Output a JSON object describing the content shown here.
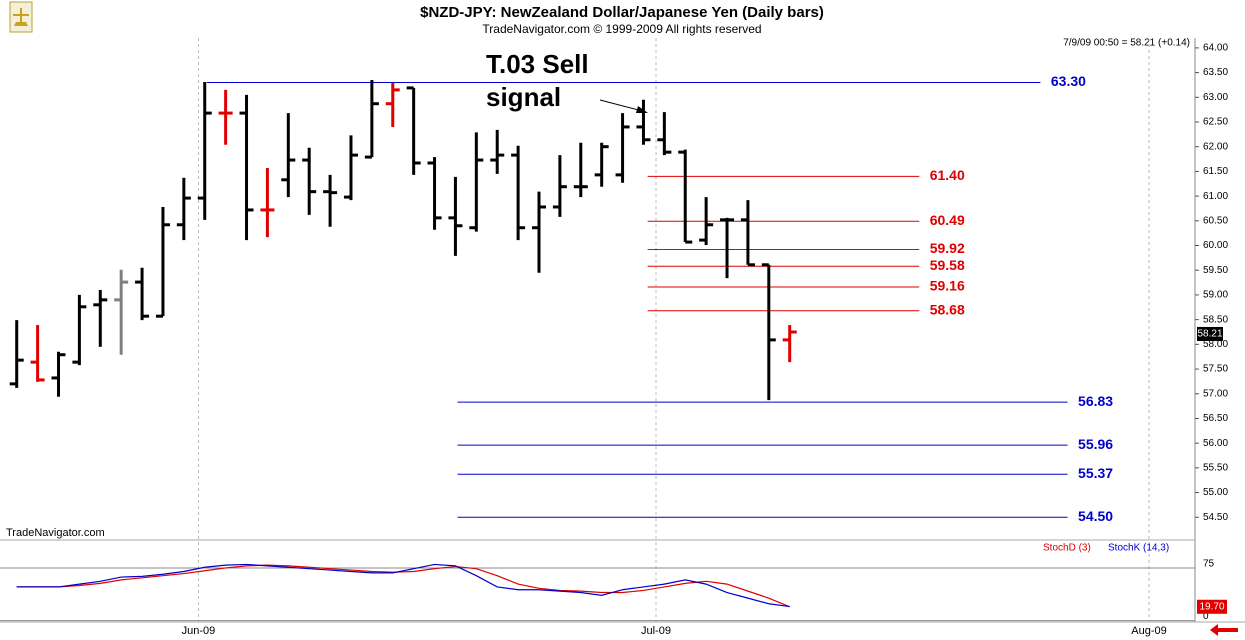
{
  "chart_data": [
    {
      "type": "ohlc",
      "title": "$NZD-JPY:  NewZealand Dollar/Japanese Yen  (Daily bars)",
      "subtitle": "TradeNavigator.com © 1999-2009 All rights reserved",
      "quote": "7/9/09 00:50 = 58.21 (+0.14)",
      "source": "TradeNavigator.com",
      "annotation": [
        "T.03 Sell",
        "signal"
      ],
      "x": [
        0,
        1,
        2,
        3,
        4,
        5,
        6,
        7,
        8,
        9,
        10,
        11,
        12,
        13,
        14,
        15,
        16,
        17,
        18,
        19,
        20,
        21,
        22,
        23,
        24,
        25,
        26,
        27,
        28,
        29,
        30,
        31,
        32,
        33,
        34,
        35,
        36,
        37
      ],
      "open": [
        57.2,
        57.64,
        57.32,
        57.64,
        58.8,
        58.9,
        59.26,
        58.57,
        60.42,
        60.96,
        62.68,
        62.68,
        60.72,
        61.33,
        61.73,
        61.09,
        60.98,
        61.79,
        62.87,
        63.19,
        61.67,
        60.56,
        60.36,
        61.73,
        61.83,
        60.36,
        60.78,
        61.19,
        61.43,
        61.43,
        62.4,
        62.14,
        61.89,
        60.11,
        60.52,
        60.52,
        59.61,
        58.09
      ],
      "high": [
        58.49,
        58.39,
        57.85,
        59.0,
        59.1,
        59.51,
        59.55,
        60.78,
        61.37,
        63.31,
        63.15,
        63.05,
        61.57,
        62.68,
        61.98,
        61.43,
        62.23,
        63.35,
        63.29,
        63.19,
        61.79,
        61.39,
        62.29,
        62.34,
        62.02,
        61.09,
        61.83,
        62.08,
        62.08,
        62.68,
        62.95,
        62.7,
        61.94,
        60.98,
        60.56,
        60.92,
        59.61,
        58.39
      ],
      "low": [
        57.12,
        57.24,
        56.94,
        57.58,
        57.95,
        57.79,
        58.49,
        58.57,
        60.11,
        60.52,
        62.04,
        60.11,
        60.17,
        60.98,
        60.62,
        60.38,
        60.92,
        61.79,
        62.4,
        61.43,
        60.32,
        59.79,
        60.28,
        61.45,
        60.11,
        59.45,
        60.58,
        60.98,
        61.19,
        61.27,
        62.04,
        61.83,
        60.07,
        60.01,
        59.34,
        59.61,
        56.87,
        57.64
      ],
      "close": [
        57.68,
        57.28,
        57.79,
        58.76,
        58.9,
        59.26,
        58.57,
        60.42,
        60.96,
        62.68,
        62.68,
        60.72,
        60.72,
        61.73,
        61.09,
        61.07,
        61.83,
        62.87,
        63.15,
        61.67,
        60.56,
        60.4,
        61.73,
        61.83,
        60.36,
        60.78,
        61.19,
        61.19,
        62.0,
        62.4,
        62.14,
        61.89,
        60.07,
        60.42,
        60.52,
        59.61,
        58.09,
        58.25
      ],
      "colors": [
        "#000000",
        "#e00000",
        "#000000",
        "#000000",
        "#000000",
        "#808080",
        "#000000",
        "#000000",
        "#000000",
        "#000000",
        "#e00000",
        "#000000",
        "#e00000",
        "#000000",
        "#000000",
        "#000000",
        "#000000",
        "#000000",
        "#e00000",
        "#000000",
        "#000000",
        "#000000",
        "#000000",
        "#000000",
        "#000000",
        "#000000",
        "#000000",
        "#000000",
        "#000000",
        "#000000",
        "#000000",
        "#000000",
        "#000000",
        "#000000",
        "#000000",
        "#000000",
        "#000000",
        "#e00000"
      ],
      "xlim": [
        -0.8,
        56.4
      ],
      "xticks": [
        {
          "value": 8.7,
          "label": "Jun-09"
        },
        {
          "value": 30.6,
          "label": "Jul-09"
        },
        {
          "value": 54.2,
          "label": "Aug-09"
        }
      ],
      "ylim": [
        54.04,
        64.2
      ],
      "yticks": [
        {
          "value": 54.5,
          "label": "54.50"
        },
        {
          "value": 55,
          "label": "55.00"
        },
        {
          "value": 55.5,
          "label": "55.50"
        },
        {
          "value": 56,
          "label": "56.00"
        },
        {
          "value": 56.5,
          "label": "56.50"
        },
        {
          "value": 57,
          "label": "57.00"
        },
        {
          "value": 57.5,
          "label": "57.50"
        },
        {
          "value": 58,
          "label": "58.00"
        },
        {
          "value": 58.5,
          "label": "58.50"
        },
        {
          "value": 59,
          "label": "59.00"
        },
        {
          "value": 59.5,
          "label": "59.50"
        },
        {
          "value": 60,
          "label": "60.00"
        },
        {
          "value": 60.5,
          "label": "60.50"
        },
        {
          "value": 61,
          "label": "61.00"
        },
        {
          "value": 61.5,
          "label": "61.50"
        },
        {
          "value": 62,
          "label": "62.00"
        },
        {
          "value": 62.5,
          "label": "62.50"
        },
        {
          "value": 63,
          "label": "63.00"
        },
        {
          "value": 63.5,
          "label": "63.50"
        },
        {
          "value": 64,
          "label": "64.00"
        }
      ],
      "levels": [
        {
          "value": 63.3,
          "label": "63.30",
          "color": "#0000cc",
          "from": 9.1,
          "to": 49
        },
        {
          "value": 61.4,
          "label": "61.40",
          "color": "#e00000",
          "from": 30.2,
          "to": 43.2
        },
        {
          "value": 60.49,
          "label": "60.49",
          "color": "#e00000",
          "from": 30.2,
          "to": 43.2
        },
        {
          "value": 59.92,
          "label": "59.92",
          "color": "#e00000",
          "from": 30.2,
          "to": 43.2
        },
        {
          "value": 59.58,
          "label": "59.58",
          "color": "#e00000",
          "from": 30.2,
          "to": 43.2
        },
        {
          "value": 59.16,
          "label": "59.16",
          "color": "#e00000",
          "from": 30.2,
          "to": 43.2
        },
        {
          "value": 58.68,
          "label": "58.68",
          "color": "#e00000",
          "from": 30.2,
          "to": 43.2
        },
        {
          "value": 56.83,
          "label": "56.83",
          "color": "#0000cc",
          "from": 21.1,
          "to": 50.3
        },
        {
          "value": 55.96,
          "label": "55.96",
          "color": "#0000cc",
          "from": 21.1,
          "to": 50.3
        },
        {
          "value": 55.37,
          "label": "55.37",
          "color": "#0000cc",
          "from": 21.1,
          "to": 50.3
        },
        {
          "value": 54.5,
          "label": "54.50",
          "color": "#0000cc",
          "from": 21.1,
          "to": 50.3
        }
      ],
      "last": 58.21
    },
    {
      "type": "line",
      "series": [
        {
          "name": "StochD (3)",
          "color": "#e00000",
          "values": [
            48,
            48,
            48,
            50,
            53,
            58,
            61,
            64,
            67,
            71,
            75,
            78,
            79,
            78,
            76,
            74,
            72,
            70,
            69,
            70,
            74,
            77,
            74,
            64,
            52,
            46,
            43,
            42,
            40,
            40,
            43,
            48,
            53,
            56,
            52,
            42,
            32,
            19.7
          ]
        },
        {
          "name": "StochK (14,3)",
          "color": "#0000cc",
          "values": [
            48,
            48,
            48,
            52,
            56,
            62,
            63,
            66,
            70,
            76,
            79,
            80,
            78,
            76,
            74,
            72,
            70,
            68,
            68,
            74,
            80,
            78,
            64,
            48,
            44,
            44,
            42,
            40,
            36,
            44,
            48,
            52,
            58,
            52,
            40,
            32,
            24,
            20
          ]
        }
      ],
      "ylim": [
        -2,
        112
      ],
      "yticks": [
        0,
        75
      ],
      "last": {
        "value": 19.7,
        "label": "19.70"
      }
    }
  ]
}
